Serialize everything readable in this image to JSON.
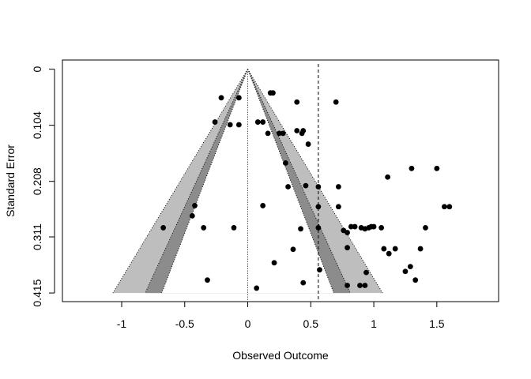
{
  "chart_data": {
    "type": "scatter",
    "subtype": "contour-enhanced funnel plot",
    "xlabel": "Observed Outcome",
    "ylabel": "Standard Error",
    "x_ticks": [
      -1,
      -0.5,
      0,
      0.5,
      1,
      1.5
    ],
    "x_tick_labels": [
      "-1",
      "-0.5",
      "0",
      "0.5",
      "1",
      "1.5"
    ],
    "y_ticks": [
      0,
      0.104,
      0.208,
      0.311,
      0.415
    ],
    "y_tick_labels": [
      "0",
      "0.104",
      "0.208",
      "0.311",
      "0.415"
    ],
    "xlim": [
      -1.47,
      1.99
    ],
    "ylim": [
      0.431,
      -0.017
    ],
    "y_reversed": true,
    "grid": false,
    "legend": "none",
    "reference_lines": [
      {
        "x": 0,
        "style": "dotted"
      },
      {
        "x": 0.56,
        "style": "dashed"
      }
    ],
    "contours": [
      {
        "z": 2.576,
        "fill": "#bebebe"
      },
      {
        "z": 1.96,
        "fill": "#8c8c8c"
      },
      {
        "z": 1.645,
        "fill": "#ffffff"
      }
    ],
    "marker_color": "#000000",
    "points": [
      {
        "x": -0.21,
        "y": 0.053
      },
      {
        "x": -0.07,
        "y": 0.053
      },
      {
        "x": -0.26,
        "y": 0.098
      },
      {
        "x": -0.14,
        "y": 0.103
      },
      {
        "x": -0.07,
        "y": 0.103
      },
      {
        "x": 0.08,
        "y": 0.098
      },
      {
        "x": 0.12,
        "y": 0.098
      },
      {
        "x": 0.16,
        "y": 0.119
      },
      {
        "x": 0.18,
        "y": 0.044
      },
      {
        "x": 0.2,
        "y": 0.044
      },
      {
        "x": 0.25,
        "y": 0.119
      },
      {
        "x": 0.28,
        "y": 0.119
      },
      {
        "x": 0.3,
        "y": 0.174
      },
      {
        "x": 0.32,
        "y": 0.218
      },
      {
        "x": 0.39,
        "y": 0.061
      },
      {
        "x": 0.39,
        "y": 0.114
      },
      {
        "x": 0.43,
        "y": 0.119
      },
      {
        "x": 0.44,
        "y": 0.114
      },
      {
        "x": 0.48,
        "y": 0.139
      },
      {
        "x": 0.46,
        "y": 0.216
      },
      {
        "x": 0.7,
        "y": 0.061
      },
      {
        "x": 0.56,
        "y": 0.218
      },
      {
        "x": 0.56,
        "y": 0.255
      },
      {
        "x": 0.56,
        "y": 0.294
      },
      {
        "x": 0.72,
        "y": 0.218
      },
      {
        "x": 0.72,
        "y": 0.255
      },
      {
        "x": -0.42,
        "y": 0.253
      },
      {
        "x": -0.44,
        "y": 0.272
      },
      {
        "x": -0.67,
        "y": 0.294
      },
      {
        "x": -0.35,
        "y": 0.294
      },
      {
        "x": -0.11,
        "y": 0.294
      },
      {
        "x": 0.12,
        "y": 0.253
      },
      {
        "x": 0.42,
        "y": 0.296
      },
      {
        "x": 0.36,
        "y": 0.334
      },
      {
        "x": 0.21,
        "y": 0.359
      },
      {
        "x": -0.32,
        "y": 0.391
      },
      {
        "x": 0.07,
        "y": 0.406
      },
      {
        "x": 0.44,
        "y": 0.396
      },
      {
        "x": 0.57,
        "y": 0.372
      },
      {
        "x": 0.76,
        "y": 0.299
      },
      {
        "x": 0.79,
        "y": 0.303
      },
      {
        "x": 0.82,
        "y": 0.292
      },
      {
        "x": 0.85,
        "y": 0.292
      },
      {
        "x": 0.79,
        "y": 0.331
      },
      {
        "x": 0.9,
        "y": 0.294
      },
      {
        "x": 0.93,
        "y": 0.296
      },
      {
        "x": 0.96,
        "y": 0.294
      },
      {
        "x": 0.98,
        "y": 0.292
      },
      {
        "x": 1.0,
        "y": 0.292
      },
      {
        "x": 1.06,
        "y": 0.294
      },
      {
        "x": 1.08,
        "y": 0.333
      },
      {
        "x": 1.12,
        "y": 0.342
      },
      {
        "x": 1.17,
        "y": 0.333
      },
      {
        "x": 1.11,
        "y": 0.2
      },
      {
        "x": 1.3,
        "y": 0.184
      },
      {
        "x": 1.5,
        "y": 0.184
      },
      {
        "x": 1.56,
        "y": 0.255
      },
      {
        "x": 1.6,
        "y": 0.255
      },
      {
        "x": 1.41,
        "y": 0.294
      },
      {
        "x": 1.37,
        "y": 0.333
      },
      {
        "x": 1.29,
        "y": 0.366
      },
      {
        "x": 1.25,
        "y": 0.375
      },
      {
        "x": 1.33,
        "y": 0.391
      },
      {
        "x": 0.94,
        "y": 0.377
      },
      {
        "x": 0.89,
        "y": 0.401
      },
      {
        "x": 0.93,
        "y": 0.401
      },
      {
        "x": 0.79,
        "y": 0.401
      }
    ]
  }
}
